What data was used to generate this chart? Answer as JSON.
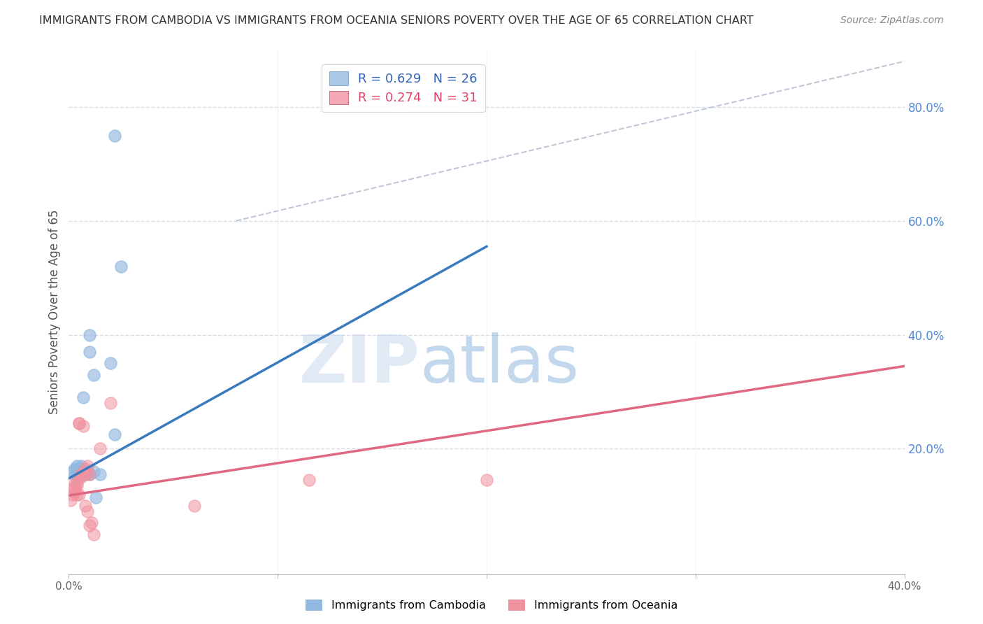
{
  "title": "IMMIGRANTS FROM CAMBODIA VS IMMIGRANTS FROM OCEANIA SENIORS POVERTY OVER THE AGE OF 65 CORRELATION CHART",
  "source": "Source: ZipAtlas.com",
  "ylabel": "Seniors Poverty Over the Age of 65",
  "watermark_zip": "ZIP",
  "watermark_atlas": "atlas",
  "xlim": [
    0.0,
    0.4
  ],
  "ylim": [
    -0.02,
    0.9
  ],
  "xticks": [
    0.0,
    0.1,
    0.2,
    0.3,
    0.4
  ],
  "xtick_labels": [
    "0.0%",
    "",
    "",
    "",
    "40.0%"
  ],
  "yticks_right": [
    0.2,
    0.4,
    0.6,
    0.8
  ],
  "ytick_labels_right": [
    "20.0%",
    "40.0%",
    "60.0%",
    "80.0%"
  ],
  "cambodia_color": "#92b8e0",
  "oceania_color": "#f0929f",
  "cambodia_line_color": "#3a7abf",
  "oceania_line_color": "#e06880",
  "ref_line_color": "#c0c8d8",
  "background_color": "#ffffff",
  "grid_color": "#d8dce8",
  "title_color": "#333333",
  "right_axis_label_color": "#5588cc",
  "legend_box_color_cambodia": "#aac8e8",
  "legend_box_color_oceania": "#f4a8b8",
  "legend_border_color": "#cccccc",
  "cambodia_scatter": [
    [
      0.002,
      0.16
    ],
    [
      0.003,
      0.155
    ],
    [
      0.003,
      0.165
    ],
    [
      0.004,
      0.17
    ],
    [
      0.004,
      0.155
    ],
    [
      0.004,
      0.16
    ],
    [
      0.005,
      0.165
    ],
    [
      0.005,
      0.155
    ],
    [
      0.005,
      0.15
    ],
    [
      0.006,
      0.16
    ],
    [
      0.006,
      0.155
    ],
    [
      0.006,
      0.17
    ],
    [
      0.007,
      0.29
    ],
    [
      0.008,
      0.155
    ],
    [
      0.009,
      0.16
    ],
    [
      0.01,
      0.4
    ],
    [
      0.01,
      0.37
    ],
    [
      0.01,
      0.155
    ],
    [
      0.012,
      0.33
    ],
    [
      0.012,
      0.16
    ],
    [
      0.013,
      0.115
    ],
    [
      0.015,
      0.155
    ],
    [
      0.02,
      0.35
    ],
    [
      0.022,
      0.225
    ],
    [
      0.022,
      0.75
    ],
    [
      0.025,
      0.52
    ]
  ],
  "oceania_scatter": [
    [
      0.001,
      0.11
    ],
    [
      0.002,
      0.12
    ],
    [
      0.002,
      0.13
    ],
    [
      0.003,
      0.125
    ],
    [
      0.003,
      0.14
    ],
    [
      0.003,
      0.13
    ],
    [
      0.004,
      0.135
    ],
    [
      0.004,
      0.14
    ],
    [
      0.004,
      0.12
    ],
    [
      0.005,
      0.12
    ],
    [
      0.005,
      0.245
    ],
    [
      0.005,
      0.245
    ],
    [
      0.006,
      0.155
    ],
    [
      0.006,
      0.155
    ],
    [
      0.006,
      0.15
    ],
    [
      0.007,
      0.24
    ],
    [
      0.007,
      0.155
    ],
    [
      0.008,
      0.165
    ],
    [
      0.008,
      0.1
    ],
    [
      0.008,
      0.155
    ],
    [
      0.009,
      0.17
    ],
    [
      0.009,
      0.09
    ],
    [
      0.01,
      0.065
    ],
    [
      0.01,
      0.155
    ],
    [
      0.011,
      0.07
    ],
    [
      0.012,
      0.05
    ],
    [
      0.015,
      0.2
    ],
    [
      0.02,
      0.28
    ],
    [
      0.06,
      0.1
    ],
    [
      0.115,
      0.145
    ],
    [
      0.2,
      0.145
    ]
  ],
  "cambodia_line": {
    "x0": 0.0,
    "y0": 0.148,
    "x1": 0.2,
    "y1": 0.555
  },
  "oceania_line": {
    "x0": 0.0,
    "y0": 0.118,
    "x1": 0.4,
    "y1": 0.345
  },
  "ref_line": {
    "x0": 0.08,
    "y0": 0.6,
    "x1": 0.4,
    "y1": 0.88
  }
}
